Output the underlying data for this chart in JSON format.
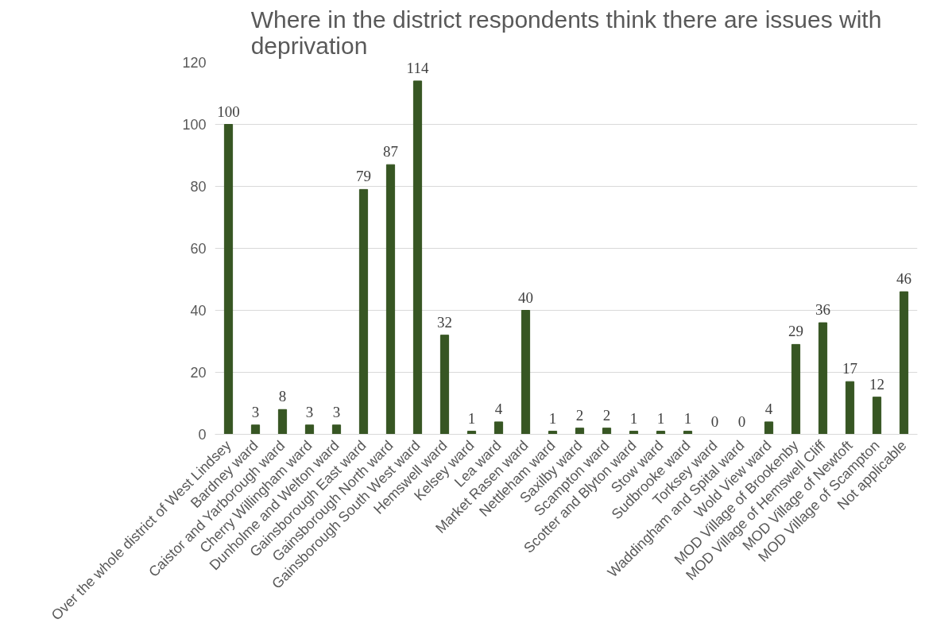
{
  "chart_data": {
    "type": "bar",
    "title": "Where in the district respondents think there are issues with\ndeprivation",
    "categories": [
      "Over the whole district of West Lindsey",
      "Bardney ward",
      "Caistor and Yarborough ward",
      "Cherry Willingham ward",
      "Dunholme and Welton ward",
      "Gainsborough East ward",
      "Gainsborough North ward",
      "Gainsborough South West ward",
      "Hemswell ward",
      "Kelsey ward",
      "Lea ward",
      "Market Rasen ward",
      "Nettleham ward",
      "Saxilby ward",
      "Scampton ward",
      "Scotter and Blyton ward",
      "Stow ward",
      "Sudbrooke ward",
      "Torksey ward",
      "Waddingham and Spital ward",
      "Wold View ward",
      "MOD Village of Brookenby",
      "MOD Village of Hemswell Cliff",
      "MOD Village of Newtoft",
      "MOD Village of Scampton",
      "Not applicable"
    ],
    "values": [
      100,
      3,
      8,
      3,
      3,
      79,
      87,
      114,
      32,
      1,
      4,
      40,
      1,
      2,
      2,
      1,
      1,
      1,
      0,
      0,
      4,
      29,
      36,
      17,
      12,
      46
    ],
    "color": "#375623",
    "ylim": [
      0,
      120
    ],
    "yticks": [
      0,
      20,
      40,
      60,
      80,
      100,
      120
    ],
    "grid": "y",
    "data_labels": true
  }
}
